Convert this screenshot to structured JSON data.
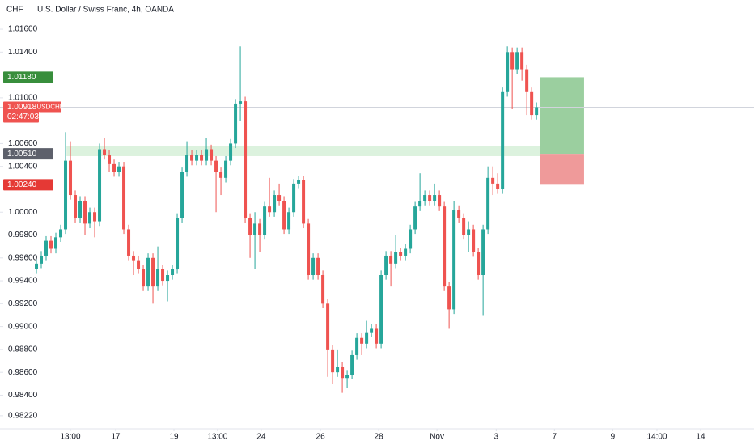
{
  "chart_data": {
    "type": "candlestick",
    "title": "U.S. Dollar / Swiss Franc, 4h, OANDA",
    "y_label": "CHF",
    "up_color": "#26a69a",
    "down_color": "#ef5350",
    "grid": false,
    "ylim": [
      0.98106,
      1.01855
    ],
    "xlim": [
      -7.5,
      147.8
    ],
    "yticks": [
      {
        "value": 1.016,
        "label": "1.01600"
      },
      {
        "value": 1.014,
        "label": "1.01400"
      },
      {
        "value": 1.01,
        "label": "1.01000"
      },
      {
        "value": 1.006,
        "label": "1.00600"
      },
      {
        "value": 1.004,
        "label": "1.00400"
      },
      {
        "value": 1.0,
        "label": "1.00000"
      },
      {
        "value": 0.998,
        "label": "0.99800"
      },
      {
        "value": 0.996,
        "label": "0.99600"
      },
      {
        "value": 0.994,
        "label": "0.99400"
      },
      {
        "value": 0.992,
        "label": "0.99200"
      },
      {
        "value": 0.99,
        "label": "0.99000"
      },
      {
        "value": 0.988,
        "label": "0.98800"
      },
      {
        "value": 0.986,
        "label": "0.98600"
      },
      {
        "value": 0.984,
        "label": "0.98400"
      },
      {
        "value": 0.9822,
        "label": "0.98220"
      }
    ],
    "xticks": [
      {
        "value": 7,
        "label": "13:00"
      },
      {
        "value": 16.33,
        "label": "17"
      },
      {
        "value": 28.33,
        "label": "19"
      },
      {
        "value": 37.3,
        "label": "13:00"
      },
      {
        "value": 46.3,
        "label": "24"
      },
      {
        "value": 58.5,
        "label": "26"
      },
      {
        "value": 70.5,
        "label": "28"
      },
      {
        "value": 82.5,
        "label": "Nov"
      },
      {
        "value": 94.7,
        "label": "3"
      },
      {
        "value": 106.7,
        "label": "7"
      },
      {
        "value": 118.7,
        "label": "9"
      },
      {
        "value": 127.8,
        "label": "14:00"
      },
      {
        "value": 136.8,
        "label": "14"
      }
    ],
    "open": [
      0.995,
      0.9955,
      0.9962,
      0.9975,
      0.9968,
      0.9978,
      0.9985,
      1.0045,
      1.0015,
      0.9995,
      1.001,
      0.999,
      1.0,
      0.9992,
      1.0055,
      1.005,
      1.0042,
      1.0035,
      1.004,
      0.9985,
      0.9962,
      0.9958,
      0.995,
      0.9935,
      0.996,
      0.9935,
      0.995,
      0.994,
      0.9945,
      0.995,
      0.9995,
      1.0035,
      1.005,
      1.0045,
      1.005,
      1.0045,
      1.0055,
      1.0045,
      1.0035,
      1.003,
      1.0045,
      1.006,
      1.0095,
      1.0097,
      0.9995,
      0.998,
      0.999,
      0.998,
      1.0005,
      1.0,
      1.0015,
      1.001,
      0.9985,
      1.0,
      1.0025,
      1.0028,
      0.999,
      0.9945,
      0.996,
      0.9945,
      0.992,
      0.988,
      0.986,
      0.9865,
      0.9855,
      0.9858,
      0.9875,
      0.989,
      0.9885,
      0.9895,
      0.9898,
      0.9885,
      0.9945,
      0.9962,
      0.9955,
      0.9965,
      0.9962,
      0.9968,
      0.9985,
      1.0005,
      1.001,
      1.0015,
      1.001,
      1.0015,
      1.0005,
      0.9935,
      0.9915,
      1.0002,
      0.9995,
      0.998,
      0.9985,
      0.9965,
      0.9945,
      0.9985,
      1.003,
      1.0025,
      1.002,
      1.0105,
      1.014,
      1.0125,
      1.014,
      1.0125,
      1.0105,
      1.0085
    ],
    "high": [
      0.9959,
      0.9966,
      0.9979,
      0.9979,
      0.9982,
      0.9989,
      1.007,
      1.0062,
      1.0019,
      1.0014,
      1.0014,
      1.0004,
      1.0004,
      1.006,
      1.0065,
      1.0054,
      1.0046,
      1.0044,
      1.0044,
      0.9989,
      0.9966,
      0.9962,
      0.9954,
      0.9964,
      0.9964,
      0.997,
      0.9954,
      0.9949,
      0.9954,
      0.9999,
      1.0039,
      1.0062,
      1.0054,
      1.0054,
      1.0054,
      1.0065,
      1.0059,
      1.0049,
      1.0039,
      1.0049,
      1.0064,
      1.0099,
      1.0145,
      1.0101,
      0.9999,
      1.0,
      0.9994,
      1.0009,
      1.003,
      1.0019,
      1.0025,
      1.0014,
      1.0004,
      1.0029,
      1.0032,
      1.0032,
      0.9994,
      0.9964,
      0.9964,
      0.9949,
      0.9924,
      0.9884,
      0.988,
      0.9869,
      0.9862,
      0.9879,
      0.9894,
      0.9894,
      0.9905,
      0.9902,
      0.9902,
      0.9949,
      0.9966,
      0.9966,
      0.998,
      0.9969,
      0.9972,
      0.9989,
      1.0009,
      1.0034,
      1.0019,
      1.0019,
      1.0025,
      1.0019,
      1.0009,
      0.9939,
      1.001,
      1.0006,
      0.9999,
      0.9992,
      0.9989,
      0.9969,
      0.9989,
      1.004,
      1.004,
      1.0034,
      1.0109,
      1.0145,
      1.0144,
      1.0144,
      1.0144,
      1.0129,
      1.0109,
      1.0096
    ],
    "low": [
      0.9946,
      0.9951,
      0.9958,
      0.9964,
      0.9964,
      0.9974,
      0.9981,
      1.0011,
      0.9991,
      0.9991,
      0.998,
      0.9986,
      0.9978,
      0.9988,
      1.0046,
      1.0035,
      1.0031,
      1.0031,
      0.9981,
      0.9958,
      0.9945,
      0.9946,
      0.9931,
      0.9931,
      0.992,
      0.9931,
      0.9936,
      0.9922,
      0.9941,
      0.9946,
      0.9991,
      1.0031,
      1.0041,
      1.0041,
      1.0041,
      1.0041,
      1.0041,
      1.0,
      1.0015,
      1.0026,
      1.0041,
      1.0056,
      1.008,
      0.9991,
      0.996,
      0.995,
      0.9965,
      0.9976,
      0.9996,
      0.9996,
      1.0006,
      0.9981,
      0.9981,
      0.9996,
      1.0021,
      0.9986,
      0.9941,
      0.9941,
      0.9941,
      0.9916,
      0.9856,
      0.985,
      0.9856,
      0.9842,
      0.9846,
      0.9854,
      0.9871,
      0.9875,
      0.9881,
      0.9891,
      0.9881,
      0.9881,
      0.9941,
      0.9935,
      0.9951,
      0.9958,
      0.9958,
      0.9964,
      0.9981,
      1.0001,
      1.0006,
      1.0006,
      1.0006,
      1.0001,
      0.9931,
      0.9898,
      0.9911,
      0.9991,
      0.9976,
      0.9965,
      0.9961,
      0.9941,
      0.991,
      0.9981,
      1.0015,
      1.0016,
      1.0016,
      1.0101,
      1.009,
      1.0121,
      1.0115,
      1.0085,
      1.0081,
      1.0081
    ],
    "close": [
      0.9955,
      0.9962,
      0.9975,
      0.9968,
      0.9978,
      0.9985,
      1.0045,
      1.0015,
      0.9995,
      1.001,
      0.999,
      1.0,
      0.9992,
      1.0055,
      1.005,
      1.0042,
      1.0035,
      1.004,
      0.9985,
      0.9962,
      0.9958,
      0.995,
      0.9935,
      0.996,
      0.9935,
      0.995,
      0.994,
      0.9945,
      0.995,
      0.9995,
      1.0035,
      1.005,
      1.0045,
      1.005,
      1.0045,
      1.0055,
      1.0045,
      1.0035,
      1.003,
      1.0045,
      1.006,
      1.0095,
      1.0097,
      0.9995,
      0.998,
      0.999,
      0.998,
      1.0005,
      1.0,
      1.0015,
      1.001,
      0.9985,
      1.0,
      1.0025,
      1.0028,
      0.999,
      0.9945,
      0.996,
      0.9945,
      0.992,
      0.988,
      0.986,
      0.9865,
      0.9855,
      0.9858,
      0.9875,
      0.989,
      0.9885,
      0.9895,
      0.9898,
      0.9885,
      0.9945,
      0.9962,
      0.9955,
      0.9965,
      0.9962,
      0.9968,
      0.9985,
      1.0005,
      1.001,
      1.0015,
      1.001,
      1.0015,
      1.0005,
      0.9935,
      0.9915,
      1.0002,
      0.9995,
      0.998,
      0.9985,
      0.9965,
      0.9945,
      0.9985,
      1.003,
      1.0025,
      1.002,
      1.0105,
      1.014,
      1.0125,
      1.014,
      1.0125,
      1.0105,
      1.0085,
      1.00918
    ],
    "zone": {
      "low": 1.0049,
      "high": 1.00575,
      "start": 6.2,
      "end": 103.8,
      "color": "#d6f0d8"
    },
    "position": {
      "target": 1.0118,
      "entry": 1.0051,
      "stop": 1.0024,
      "start": 103.8,
      "end": 112.8,
      "profit_color": "#9bcf9f",
      "loss_color": "#ef9a9a"
    },
    "price_labels": [
      {
        "value": 1.0118,
        "label": "1.01180",
        "color": "#388e3c"
      },
      {
        "value": 1.00918,
        "label": "1.00918",
        "color": "#ef5350",
        "symbol": "USDCHF",
        "countdown": "02:47:03"
      },
      {
        "value": 1.0051,
        "label": "1.00510",
        "color": "#5d606b"
      },
      {
        "value": 1.0024,
        "label": "1.00240",
        "color": "#e53935"
      }
    ]
  }
}
